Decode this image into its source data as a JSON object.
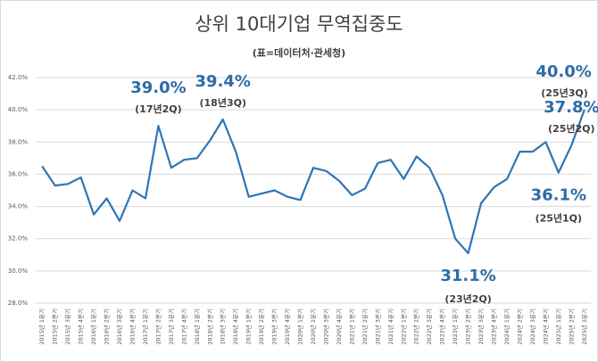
{
  "chart_data": {
    "type": "line",
    "title": "상위 10대기업 무역집중도",
    "subtitle": "(표=데이터처·관세청)",
    "categories": [
      "2015년 1분기",
      "2015년 2분기",
      "2015년 3분기",
      "2015년 4분기",
      "2016년 1분기",
      "2016년 2분기",
      "2016년 3분기",
      "2016년 4분기",
      "2017년 1분기",
      "2017년 2분기",
      "2017년 3분기",
      "2017년 4분기",
      "2018년 1분기",
      "2018년 2분기",
      "2018년 3분기",
      "2018년 4분기",
      "2019년 1분기",
      "2019년 2분기",
      "2019년 3분기",
      "2019년 4분기",
      "2020년 1분기",
      "2020년 2분기",
      "2020년 3분기",
      "2020년 4분기",
      "2021년 1분기",
      "2021년 2분기",
      "2021년 3분기",
      "2021년 4분기",
      "2022년 1분기",
      "2022년 2분기",
      "2022년 3분기",
      "2022년 4분기",
      "2023년 1분기",
      "2023년 2분기",
      "2023년 3분기",
      "2023년 4분기",
      "2024년 1분기",
      "2024년 2분기",
      "2024년 3분기",
      "2024년 4분기",
      "2025년 1분기",
      "2025년 2분기",
      "2025년 3분기"
    ],
    "values": [
      36.5,
      35.3,
      35.4,
      35.8,
      33.5,
      34.5,
      33.1,
      35.0,
      34.5,
      39.0,
      36.4,
      36.9,
      37.0,
      38.1,
      39.4,
      37.4,
      34.6,
      34.8,
      35.0,
      34.6,
      34.4,
      36.4,
      36.2,
      35.6,
      34.7,
      35.1,
      36.7,
      36.9,
      35.7,
      37.1,
      36.4,
      34.7,
      32.0,
      31.1,
      34.2,
      35.2,
      35.7,
      37.4,
      37.4,
      38.0,
      36.1,
      37.8,
      40.0
    ],
    "value_labels": [
      null,
      null,
      null,
      null,
      null,
      null,
      null,
      null,
      null,
      "39.0%",
      null,
      null,
      null,
      null,
      "39.4%",
      null,
      null,
      null,
      null,
      null,
      null,
      null,
      null,
      null,
      null,
      null,
      null,
      null,
      null,
      null,
      null,
      null,
      null,
      "31.1%",
      null,
      null,
      null,
      null,
      null,
      null,
      "36.1%",
      "37.8%",
      "40.0%"
    ],
    "value_sublabels": [
      null,
      null,
      null,
      null,
      null,
      null,
      null,
      null,
      null,
      "(17년2Q)",
      null,
      null,
      null,
      null,
      "(18년3Q)",
      null,
      null,
      null,
      null,
      null,
      null,
      null,
      null,
      null,
      null,
      null,
      null,
      null,
      null,
      null,
      null,
      null,
      null,
      "(23년2Q)",
      null,
      null,
      null,
      null,
      null,
      null,
      "(25년1Q)",
      "(25년2Q)",
      "(25년3Q)"
    ],
    "color": "#2e75b6",
    "label_color": "#2e6ca4",
    "ylim": [
      28,
      42
    ],
    "yticks": [
      {
        "value": 28,
        "label": "28.0%"
      },
      {
        "value": 30,
        "label": "30.0%"
      },
      {
        "value": 32,
        "label": "32.0%"
      },
      {
        "value": 34,
        "label": "34.0%"
      },
      {
        "value": 36,
        "label": "36.0%"
      },
      {
        "value": 38,
        "label": "38.0%"
      },
      {
        "value": 40,
        "label": "40.0%"
      },
      {
        "value": 42,
        "label": "42.0%"
      }
    ],
    "grid": true
  }
}
